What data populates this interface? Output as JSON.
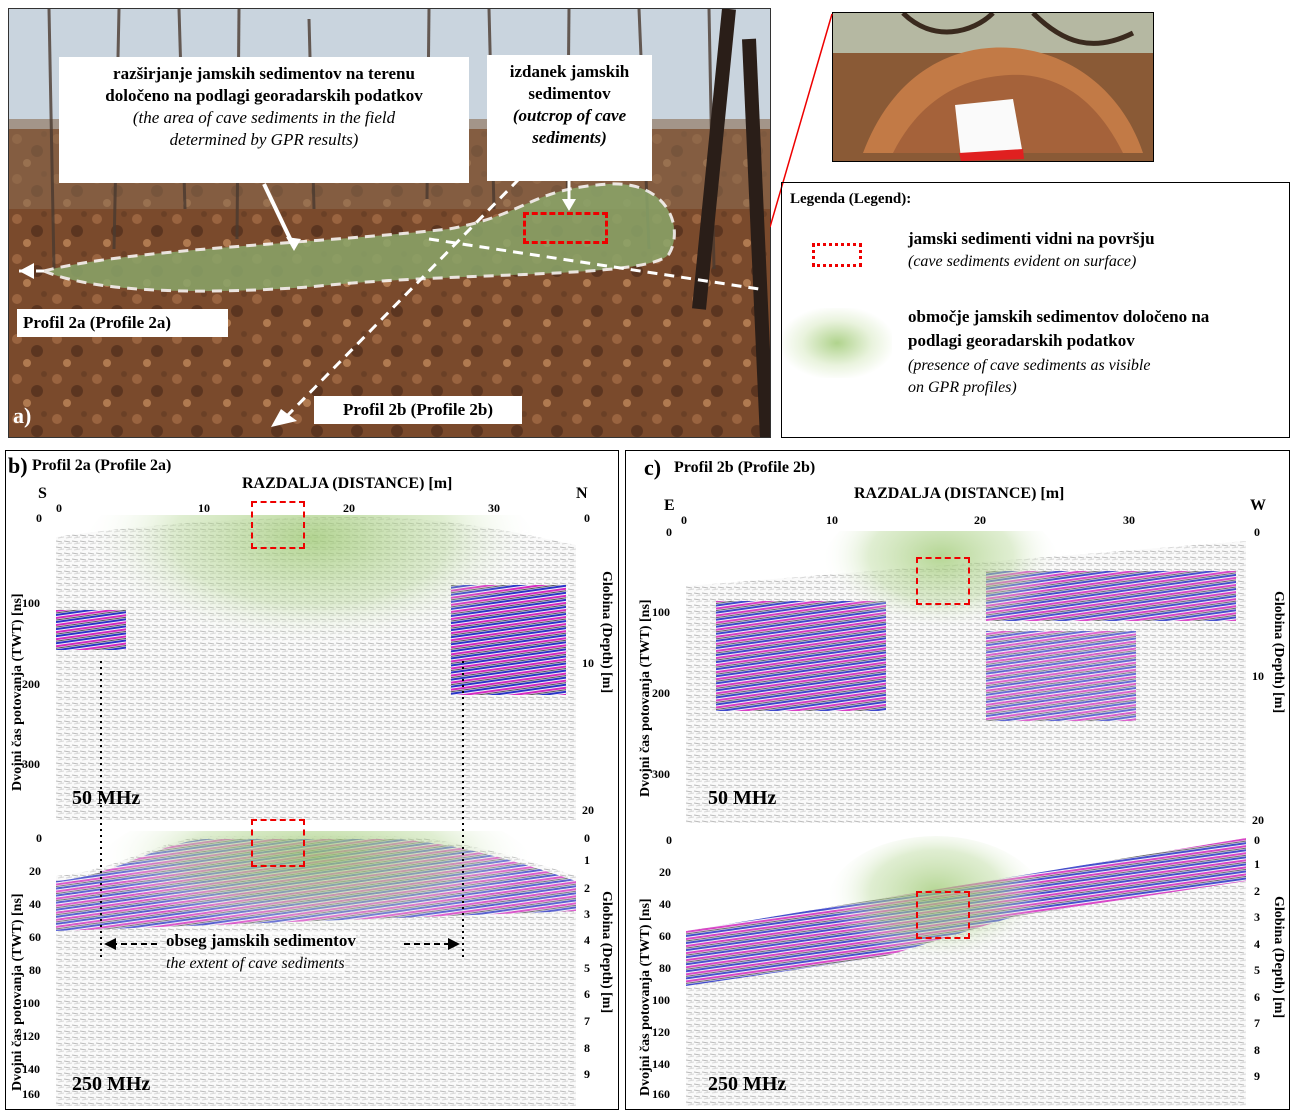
{
  "panel_a": {
    "label": "a)",
    "callout_left_line1": "razširjanje jamskih sedimentov na terenu",
    "callout_left_line2": "določeno na podlagi georadarskih podatkov",
    "callout_left_line3": "(the area of cave sediments in the field",
    "callout_left_line4": "determined by GPR results)",
    "callout_right_line1": "izdanek jamskih",
    "callout_right_line2": "sedimentov",
    "callout_right_line3": "(outcrop of cave",
    "callout_right_line4": "sediments)",
    "profile_2a_label": "Profil 2a (Profile 2a)",
    "profile_2b_label": "Profil 2b (Profile 2b)"
  },
  "legend": {
    "title": "Legenda (Legend):",
    "item1_line1": "jamski sedimenti vidni na površju",
    "item1_line2": "(cave sediments evident on surface)",
    "item2_line1": "območje jamskih sedimentov določeno na",
    "item2_line2": "podlagi georadarskih podatkov",
    "item2_line3": "(presence of cave sediments as visible",
    "item2_line4": "on GPR profiles)"
  },
  "panel_b": {
    "label": "b)",
    "title": "Profil 2a (Profile 2a)",
    "xlabel": "RAZDALJA (DISTANCE) [m]",
    "left_dir": "S",
    "right_dir": "N",
    "x_ticks": [
      "0",
      "10",
      "20",
      "30"
    ],
    "ylabel_left": "Dvojni čas potovanja (TWT) [ns]",
    "ylabel_right": "Globina (Depth) [m]",
    "top_freq": "50 MHz",
    "bottom_freq": "250 MHz",
    "top_y_ticks": [
      "0",
      "100",
      "200",
      "300"
    ],
    "top_depth_ticks": [
      "0",
      "10",
      "20"
    ],
    "bottom_y_ticks": [
      "0",
      "20",
      "40",
      "60",
      "80",
      "100",
      "120",
      "140",
      "160"
    ],
    "bottom_depth_ticks": [
      "0",
      "1",
      "2",
      "3",
      "4",
      "5",
      "6",
      "7",
      "8",
      "9"
    ],
    "extent_line1": "obseg jamskih sedimentov",
    "extent_line2": "the extent of cave sediments"
  },
  "panel_c": {
    "label": "c)",
    "title": "Profil 2b (Profile 2b)",
    "xlabel": "RAZDALJA (DISTANCE) [m]",
    "left_dir": "E",
    "right_dir": "W",
    "x_ticks": [
      "0",
      "10",
      "20",
      "30"
    ],
    "ylabel_left": "Dvojni čas potovanja (TWT) [ns]",
    "ylabel_right": "Globina (Depth) [m]",
    "top_freq": "50 MHz",
    "bottom_freq": "250 MHz",
    "top_y_ticks": [
      "0",
      "100",
      "200",
      "300"
    ],
    "top_depth_ticks": [
      "0",
      "10",
      "20"
    ],
    "bottom_y_ticks": [
      "0",
      "20",
      "40",
      "60",
      "80",
      "100",
      "120",
      "140",
      "160"
    ],
    "bottom_depth_ticks": [
      "0",
      "1",
      "2",
      "3",
      "4",
      "5",
      "6",
      "7",
      "8",
      "9"
    ]
  },
  "colors": {
    "red_marker": "#e00000",
    "green_zone": "#9cc870",
    "radar_purple": "#8a2be2",
    "radar_blue": "#1a2fd0",
    "radar_magenta": "#e020b0"
  }
}
